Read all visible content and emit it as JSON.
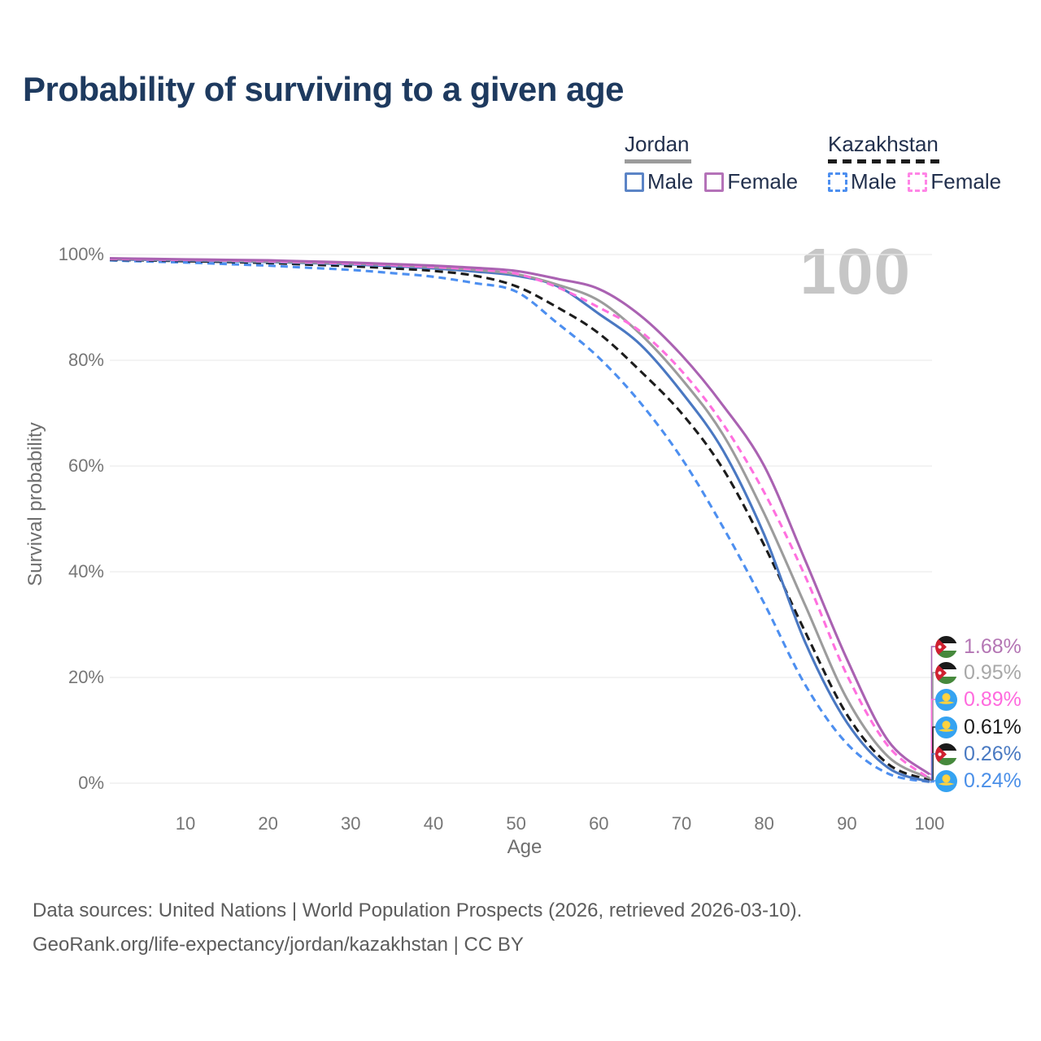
{
  "title": "Probability of surviving to a given age",
  "watermark_age": "100",
  "legend": {
    "groups": [
      {
        "label": "Jordan",
        "line_style": "solid",
        "line_color": "#9c9c9c",
        "underline_width": 82,
        "items": [
          {
            "label": "Male",
            "color": "#5b84c6"
          },
          {
            "label": "Female",
            "color": "#b472b8"
          }
        ]
      },
      {
        "label": "Kazakhstan",
        "line_style": "dashed",
        "line_color": "#1c1c1c",
        "underline_width": 138,
        "items": [
          {
            "label": "Male",
            "color": "#4d8ff0"
          },
          {
            "label": "Female",
            "color": "#ff85e6"
          }
        ]
      }
    ]
  },
  "chart_data": {
    "type": "line",
    "title": "Probability of surviving to a given age",
    "xlabel": "Age",
    "ylabel": "Survival probability",
    "xlim": [
      0,
      100
    ],
    "ylim": [
      0,
      100
    ],
    "grid": "horizontal",
    "legend_position": "top-right",
    "x_ticks": [
      10,
      20,
      30,
      40,
      50,
      60,
      70,
      80,
      90,
      100
    ],
    "y_ticks": [
      "0%",
      "20%",
      "40%",
      "60%",
      "80%",
      "100%"
    ],
    "ages": [
      0,
      5,
      10,
      15,
      20,
      25,
      30,
      35,
      40,
      45,
      50,
      55,
      60,
      65,
      70,
      75,
      80,
      85,
      90,
      95,
      100
    ],
    "series": [
      {
        "key": "jordan_female",
        "name": "Jordan Female",
        "country": "Jordan",
        "sex": "Female",
        "color": "#aa62b2",
        "dash": null,
        "values": [
          99.3,
          99.2,
          99.1,
          99.0,
          98.9,
          98.7,
          98.5,
          98.2,
          97.9,
          97.5,
          96.9,
          95.4,
          93.5,
          88.5,
          81.0,
          71.5,
          60.0,
          42.0,
          23.5,
          8.0,
          1.68
        ],
        "end_value_label": "1.68%"
      },
      {
        "key": "jordan_total",
        "name": "Jordan",
        "country": "Jordan",
        "sex": "Both",
        "color": "#9c9c9c",
        "dash": null,
        "values": [
          99.2,
          99.1,
          99.0,
          98.85,
          98.7,
          98.5,
          98.3,
          98.0,
          97.6,
          97.1,
          96.3,
          94.3,
          91.3,
          85.0,
          76.5,
          66.0,
          51.0,
          33.5,
          16.0,
          5.0,
          0.95
        ],
        "end_value_label": "0.95%"
      },
      {
        "key": "jordan_male",
        "name": "Jordan Male",
        "country": "Jordan",
        "sex": "Male",
        "color": "#4a78c2",
        "dash": null,
        "values": [
          99.1,
          99.0,
          98.9,
          98.75,
          98.6,
          98.4,
          98.15,
          97.8,
          97.4,
          96.8,
          96.0,
          94.0,
          88.8,
          83.0,
          74.0,
          63.0,
          47.0,
          26.5,
          11.5,
          2.9,
          0.26
        ],
        "end_value_label": "0.26%"
      },
      {
        "key": "kazakhstan_female",
        "name": "Kazakhstan Female",
        "country": "Kazakhstan",
        "sex": "Female",
        "color": "#ff70df",
        "dash": "9 6",
        "values": [
          99.2,
          99.1,
          99.0,
          98.9,
          98.75,
          98.55,
          98.3,
          98.0,
          97.65,
          97.2,
          96.4,
          93.8,
          90.0,
          85.5,
          78.0,
          68.0,
          55.0,
          39.0,
          20.5,
          7.0,
          0.89
        ],
        "end_value_label": "0.89%"
      },
      {
        "key": "kazakhstan_total",
        "name": "Kazakhstan",
        "country": "Kazakhstan",
        "sex": "Both",
        "color": "#1c1c1c",
        "dash": "10 6",
        "values": [
          99.0,
          98.9,
          98.75,
          98.6,
          98.4,
          98.1,
          97.8,
          97.4,
          96.9,
          96.0,
          94.0,
          90.0,
          85.1,
          78.0,
          70.0,
          59.5,
          45.0,
          28.5,
          13.0,
          3.6,
          0.61
        ],
        "end_value_label": "0.61%"
      },
      {
        "key": "kazakhstan_male",
        "name": "Kazakhstan Male",
        "country": "Kazakhstan",
        "sex": "Male",
        "color": "#4d8ff0",
        "dash": "9 6",
        "values": [
          98.9,
          98.7,
          98.5,
          98.2,
          97.9,
          97.5,
          97.1,
          96.5,
          95.8,
          94.6,
          93.0,
          87.0,
          80.5,
          72.0,
          61.5,
          48.5,
          34.0,
          18.5,
          7.5,
          1.8,
          0.24
        ],
        "end_value_label": "0.24%"
      }
    ]
  },
  "end_labels": [
    {
      "series": "jordan_female",
      "flag": "jordan",
      "label": "1.68%",
      "label_color": "#b476b4"
    },
    {
      "series": "jordan_total",
      "flag": "jordan",
      "label": "0.95%",
      "label_color": "#a8a8a8"
    },
    {
      "series": "kazakhstan_female",
      "flag": "kazakhstan",
      "label": "0.89%",
      "label_color": "#ff6ade"
    },
    {
      "series": "kazakhstan_total",
      "flag": "kazakhstan",
      "label": "0.61%",
      "label_color": "#1c1c1c"
    },
    {
      "series": "jordan_male",
      "flag": "jordan",
      "label": "0.26%",
      "label_color": "#4a7ac2"
    },
    {
      "series": "kazakhstan_male",
      "flag": "kazakhstan",
      "label": "0.24%",
      "label_color": "#4a8fe8"
    }
  ],
  "footer": {
    "line1": "Data sources: United Nations | World Population Prospects (2026, retrieved 2026-03-10).",
    "line2": "GeoRank.org/life-expectancy/jordan/kazakhstan | CC BY"
  }
}
